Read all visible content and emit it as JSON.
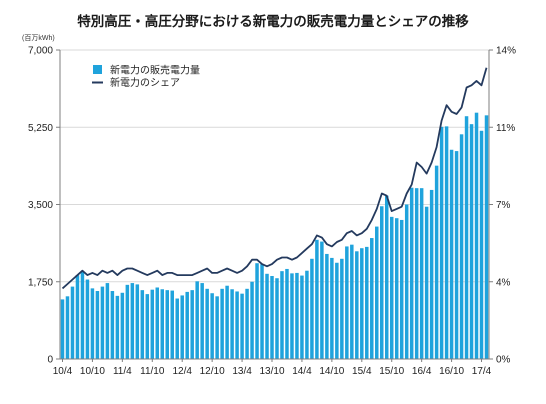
{
  "chart_data": {
    "type": "bar+line",
    "title": "特別高圧・高圧分野における新電力の販売電力量とシェアの推移",
    "ylabel_left_unit": "(百万kWh)",
    "x_tick_labels": [
      "10/4",
      "10/10",
      "11/4",
      "11/10",
      "12/4",
      "12/10",
      "13/4",
      "13/10",
      "14/4",
      "14/10",
      "15/4",
      "15/10",
      "16/4",
      "16/10",
      "17/4"
    ],
    "ylim_left": [
      0,
      7000
    ],
    "ylim_right": [
      0,
      14
    ],
    "yticks_left": [
      "0",
      "1,750",
      "3,500",
      "5,250",
      "7,000"
    ],
    "yticks_right": [
      "0%",
      "4%",
      "7%",
      "11%",
      "14%"
    ],
    "legend": [
      "新電力の販売電力量",
      "新電力のシェア"
    ],
    "colors": {
      "bar": "#1fa3dc",
      "line": "#243a5e",
      "axis": "#7f7f7f",
      "grid": "#d9d9d9"
    },
    "grid": "horizontal",
    "legend_placement": "top-left",
    "series": [
      {
        "name": "新電力の販売電力量",
        "type": "bar",
        "axis": "left",
        "values": [
          1350,
          1420,
          1640,
          1900,
          1980,
          1800,
          1600,
          1540,
          1640,
          1720,
          1540,
          1430,
          1500,
          1680,
          1720,
          1690,
          1560,
          1470,
          1570,
          1620,
          1580,
          1560,
          1550,
          1370,
          1440,
          1520,
          1560,
          1760,
          1720,
          1590,
          1490,
          1420,
          1590,
          1660,
          1580,
          1530,
          1480,
          1590,
          1750,
          2170,
          2150,
          1930,
          1880,
          1830,
          1990,
          2040,
          1940,
          1950,
          1890,
          2000,
          2270,
          2700,
          2660,
          2380,
          2290,
          2180,
          2270,
          2550,
          2590,
          2440,
          2510,
          2540,
          2740,
          3000,
          3460,
          3700,
          3220,
          3190,
          3150,
          3500,
          3880,
          3870,
          3870,
          3450,
          3830,
          4380,
          5260,
          5270,
          4740,
          4710,
          5090,
          5500,
          5320,
          5580,
          5170,
          5520
        ]
      },
      {
        "name": "新電力のシェア",
        "type": "line",
        "axis": "right",
        "values": [
          3.2,
          3.4,
          3.6,
          3.8,
          4.0,
          3.8,
          3.9,
          3.8,
          4.0,
          3.9,
          4.0,
          3.8,
          4.0,
          4.1,
          4.1,
          4.0,
          3.9,
          3.8,
          3.9,
          4.0,
          3.8,
          3.9,
          3.9,
          3.8,
          3.8,
          3.8,
          3.8,
          3.9,
          4.0,
          4.1,
          3.9,
          3.9,
          4.0,
          4.1,
          4.0,
          3.9,
          4.0,
          4.2,
          4.5,
          4.5,
          4.3,
          4.2,
          4.3,
          4.5,
          4.6,
          4.6,
          4.5,
          4.6,
          4.8,
          5.0,
          5.2,
          5.6,
          5.5,
          5.2,
          5.1,
          5.3,
          5.4,
          5.7,
          5.8,
          5.6,
          5.7,
          5.9,
          6.3,
          6.8,
          7.5,
          7.4,
          6.7,
          6.8,
          6.9,
          7.5,
          7.9,
          8.9,
          8.7,
          8.4,
          8.9,
          9.6,
          10.8,
          11.5,
          11.2,
          11.1,
          11.4,
          12.3,
          12.4,
          12.6,
          12.4,
          13.2
        ]
      }
    ]
  }
}
